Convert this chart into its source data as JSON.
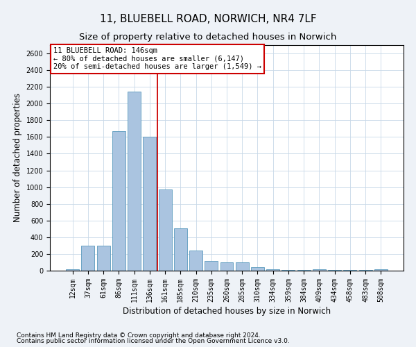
{
  "title1": "11, BLUEBELL ROAD, NORWICH, NR4 7LF",
  "title2": "Size of property relative to detached houses in Norwich",
  "xlabel": "Distribution of detached houses by size in Norwich",
  "ylabel": "Number of detached properties",
  "categories": [
    "12sqm",
    "37sqm",
    "61sqm",
    "86sqm",
    "111sqm",
    "136sqm",
    "161sqm",
    "185sqm",
    "210sqm",
    "235sqm",
    "260sqm",
    "285sqm",
    "310sqm",
    "334sqm",
    "359sqm",
    "384sqm",
    "409sqm",
    "434sqm",
    "458sqm",
    "483sqm",
    "508sqm"
  ],
  "values": [
    20,
    300,
    300,
    1670,
    2140,
    1600,
    970,
    505,
    245,
    120,
    100,
    100,
    40,
    15,
    5,
    5,
    20,
    5,
    5,
    5,
    20
  ],
  "bar_color": "#aac4e0",
  "bar_edge_color": "#5a9abd",
  "vline_x": 5.5,
  "vline_color": "#cc0000",
  "annotation_text": "11 BLUEBELL ROAD: 146sqm\n← 80% of detached houses are smaller (6,147)\n20% of semi-detached houses are larger (1,549) →",
  "annotation_box_color": "#ffffff",
  "annotation_box_edge_color": "#cc0000",
  "ylim": [
    0,
    2700
  ],
  "yticks": [
    0,
    200,
    400,
    600,
    800,
    1000,
    1200,
    1400,
    1600,
    1800,
    2000,
    2200,
    2400,
    2600
  ],
  "footer1": "Contains HM Land Registry data © Crown copyright and database right 2024.",
  "footer2": "Contains public sector information licensed under the Open Government Licence v3.0.",
  "bg_color": "#eef2f7",
  "plot_bg_color": "#ffffff",
  "title1_fontsize": 11,
  "title2_fontsize": 9.5,
  "axis_label_fontsize": 8.5,
  "tick_fontsize": 7,
  "footer_fontsize": 6.5
}
